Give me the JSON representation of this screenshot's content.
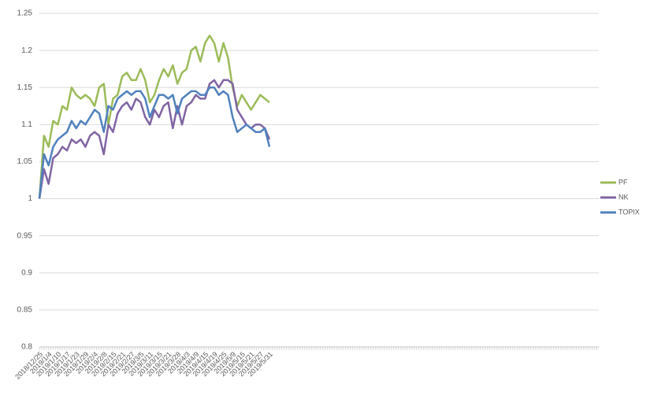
{
  "chart_data": {
    "type": "line",
    "categories": [
      "2018/12/25",
      null,
      "2019/1/4",
      null,
      "2019/1/10",
      null,
      "2019/1/17",
      null,
      "2019/1/23",
      null,
      "2019/1/29",
      null,
      "2019/2/4",
      null,
      "2019/2/8",
      null,
      "2019/2/15",
      null,
      "2019/2/21",
      null,
      "2019/2/27",
      null,
      "2019/3/5",
      null,
      "2019/3/11",
      null,
      "2019/3/15",
      null,
      "2019/3/21",
      null,
      "2019/3/28",
      null,
      "2019/4/3",
      null,
      "2019/4/9",
      null,
      "2019/4/15",
      null,
      "2019/4/19",
      null,
      "2019/4/25",
      null,
      "2019/5/9",
      null,
      "2019/5/15",
      null,
      "2019/5/21",
      null,
      "2019/5/27",
      null,
      "2019/5/31"
    ],
    "series": [
      {
        "name": "PF",
        "color": "#9bbb59",
        "values": [
          1.0,
          1.085,
          1.07,
          1.105,
          1.1,
          1.125,
          1.12,
          1.15,
          1.14,
          1.135,
          1.14,
          1.135,
          1.125,
          1.15,
          1.155,
          1.1,
          1.135,
          1.14,
          1.165,
          1.17,
          1.16,
          1.16,
          1.175,
          1.16,
          1.13,
          1.14,
          1.16,
          1.175,
          1.165,
          1.18,
          1.155,
          1.17,
          1.175,
          1.2,
          1.205,
          1.185,
          1.21,
          1.22,
          1.21,
          1.185,
          1.21,
          1.19,
          1.15,
          1.125,
          1.14,
          1.13,
          1.12,
          1.13,
          1.14,
          1.135,
          1.13
        ]
      },
      {
        "name": "NK",
        "color": "#8064a2",
        "values": [
          1.0,
          1.04,
          1.02,
          1.055,
          1.06,
          1.07,
          1.065,
          1.08,
          1.075,
          1.08,
          1.07,
          1.085,
          1.09,
          1.085,
          1.06,
          1.1,
          1.09,
          1.115,
          1.125,
          1.13,
          1.12,
          1.135,
          1.13,
          1.11,
          1.1,
          1.12,
          1.11,
          1.125,
          1.13,
          1.095,
          1.125,
          1.1,
          1.125,
          1.13,
          1.14,
          1.135,
          1.135,
          1.155,
          1.16,
          1.15,
          1.16,
          1.16,
          1.155,
          1.12,
          1.11,
          1.1,
          1.095,
          1.1,
          1.1,
          1.095,
          1.08
        ]
      },
      {
        "name": "TOPIX",
        "color": "#4f81bd",
        "values": [
          1.0,
          1.06,
          1.045,
          1.07,
          1.08,
          1.085,
          1.09,
          1.105,
          1.095,
          1.105,
          1.1,
          1.11,
          1.12,
          1.115,
          1.09,
          1.125,
          1.12,
          1.135,
          1.14,
          1.145,
          1.14,
          1.145,
          1.145,
          1.135,
          1.11,
          1.125,
          1.14,
          1.14,
          1.135,
          1.14,
          1.115,
          1.135,
          1.14,
          1.145,
          1.145,
          1.14,
          1.14,
          1.15,
          1.15,
          1.14,
          1.145,
          1.14,
          1.11,
          1.09,
          1.095,
          1.1,
          1.095,
          1.09,
          1.09,
          1.095,
          1.07
        ]
      }
    ],
    "ylim": [
      0.8,
      1.25
    ],
    "yticks": [
      0.8,
      0.85,
      0.9,
      0.95,
      1,
      1.05,
      1.1,
      1.15,
      1.2,
      1.25
    ],
    "grid": true,
    "legend": "right"
  }
}
